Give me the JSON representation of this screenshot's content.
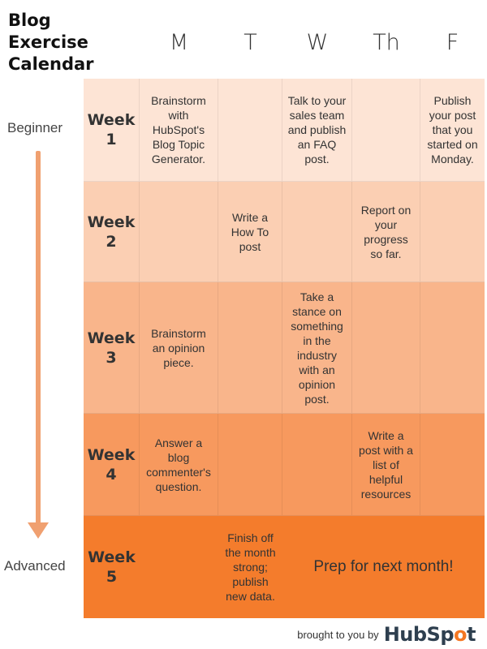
{
  "title_lines": [
    "Blog",
    "Exercise",
    "Calendar"
  ],
  "days": [
    "M",
    "T",
    "W",
    "Th",
    "F"
  ],
  "scale": {
    "top": "Beginner",
    "bottom": "Advanced"
  },
  "weeks": [
    {
      "label_line1": "Week",
      "label_line2": "1",
      "color": "#fde4d5",
      "cells": [
        "Brainstorm with HubSpot's Blog Topic Generator.",
        "",
        "Talk to your sales team and publish an FAQ post.",
        "",
        "Publish your post that you started on Monday."
      ]
    },
    {
      "label_line1": "Week",
      "label_line2": "2",
      "color": "#fbcfb3",
      "cells": [
        "",
        "Write a How To post",
        "",
        "Report on your progress so far.",
        ""
      ]
    },
    {
      "label_line1": "Week",
      "label_line2": "3",
      "color": "#f9b58b",
      "cells": [
        "Brainstorm an opinion piece.",
        "",
        "Take a stance on something in the industry with an opinion post.",
        "",
        ""
      ]
    },
    {
      "label_line1": "Week",
      "label_line2": "4",
      "color": "#f7995e",
      "cells": [
        "Answer a blog commenter's question.",
        "",
        "",
        "Write a post with a list of helpful resources",
        ""
      ]
    },
    {
      "label_line1": "Week",
      "label_line2": "5",
      "color": "#f47c2c",
      "cells": [
        "",
        "Finish off the month strong; publish new data.",
        "Prep for next month!",
        "",
        ""
      ]
    }
  ],
  "footer": {
    "credit": "brought to you by",
    "logo_part1": "HubSp",
    "logo_sprocket": "o",
    "logo_part2": "t"
  }
}
